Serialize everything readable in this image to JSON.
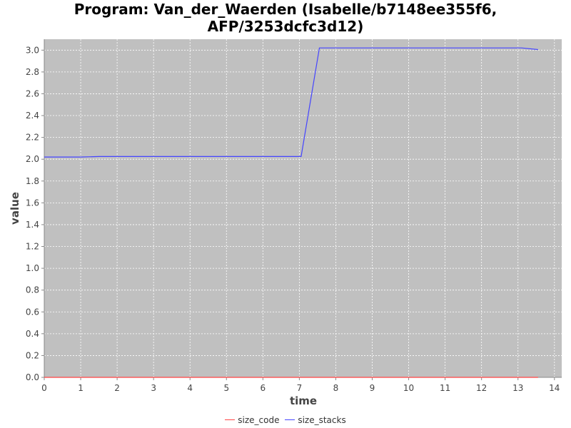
{
  "chart_data": {
    "type": "line",
    "title_lines": [
      "Program: Van_der_Waerden (Isabelle/b7148ee355f6,",
      "AFP/3253dcfc3d12)"
    ],
    "xlabel": "time",
    "ylabel": "value",
    "xlim": [
      0,
      14.2
    ],
    "ylim": [
      0,
      3.1
    ],
    "x_ticks": [
      "0",
      "1",
      "2",
      "3",
      "4",
      "5",
      "6",
      "7",
      "8",
      "9",
      "10",
      "11",
      "12",
      "13",
      "14"
    ],
    "y_ticks": [
      "0.0",
      "0.2",
      "0.4",
      "0.6",
      "0.8",
      "1.0",
      "1.2",
      "1.4",
      "1.6",
      "1.8",
      "2.0",
      "2.2",
      "2.4",
      "2.6",
      "2.8",
      "3.0"
    ],
    "grid": true,
    "legend_position": "bottom",
    "series": [
      {
        "name": "size_code",
        "color": "#ff4444",
        "points": [
          [
            0,
            0.0
          ],
          [
            13.55,
            0.0
          ]
        ]
      },
      {
        "name": "size_stacks",
        "color": "#4444ff",
        "points": [
          [
            0,
            2.02
          ],
          [
            1,
            2.02
          ],
          [
            1.5,
            2.025
          ],
          [
            7,
            2.025
          ],
          [
            7.05,
            2.025
          ],
          [
            7.55,
            3.02
          ],
          [
            13.1,
            3.02
          ],
          [
            13.55,
            3.005
          ]
        ]
      }
    ]
  }
}
